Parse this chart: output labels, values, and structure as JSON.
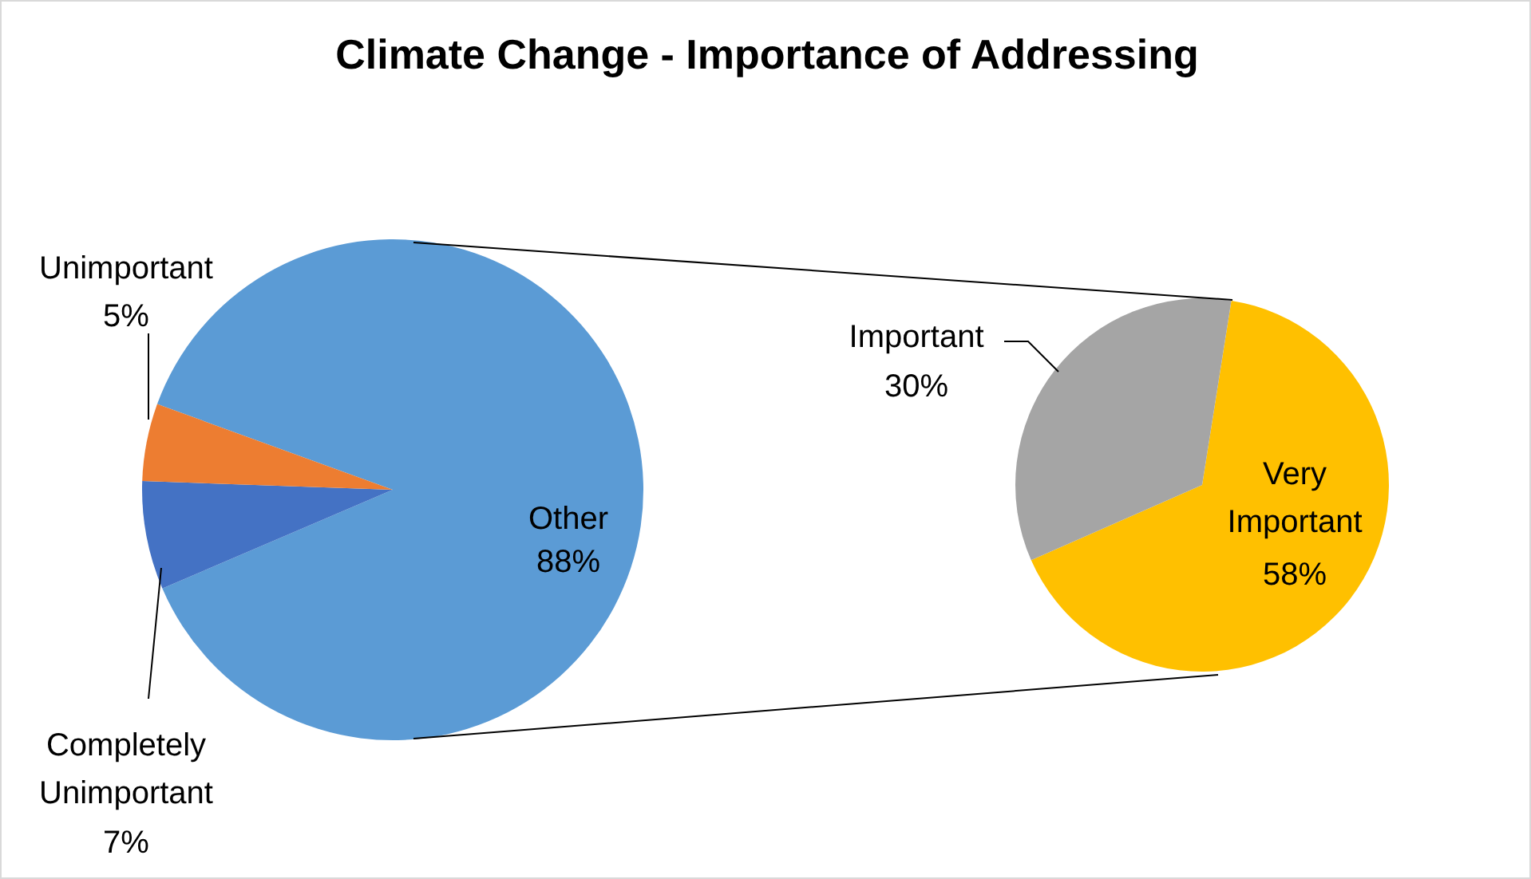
{
  "chart_data": [
    {
      "type": "pie",
      "title": "Climate Change - Importance of Addressing",
      "categories": [
        "Other",
        "Completely Unimportant",
        "Unimportant"
      ],
      "values": [
        88,
        7,
        5
      ],
      "colors": [
        "#5b9bd5",
        "#4472c4",
        "#ed7d31"
      ],
      "value_labels": [
        "88%",
        "7%",
        "5%"
      ]
    },
    {
      "type": "pie",
      "categories": [
        "Very Important",
        "Important"
      ],
      "values": [
        58,
        30
      ],
      "colors": [
        "#ffc000",
        "#a5a5a5"
      ],
      "value_labels": [
        "58%",
        "30%"
      ]
    }
  ]
}
